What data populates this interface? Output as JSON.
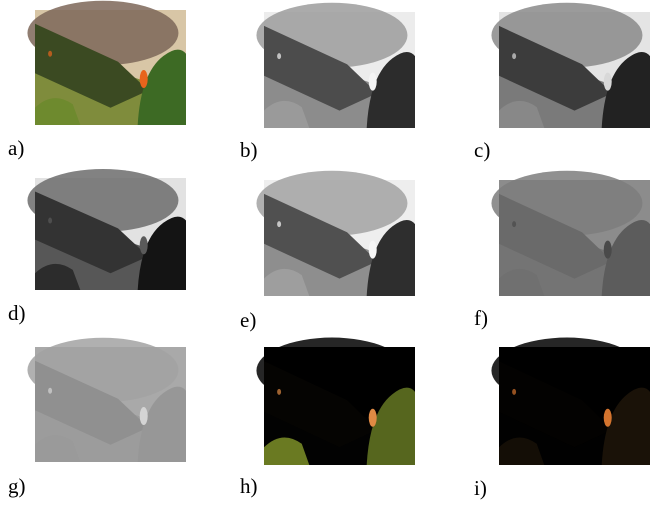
{
  "panels": [
    {
      "label": "a)"
    },
    {
      "label": "b)"
    },
    {
      "label": "c)"
    },
    {
      "label": "d)"
    },
    {
      "label": "e)"
    },
    {
      "label": "f)"
    },
    {
      "label": "g)"
    },
    {
      "label": "h)"
    },
    {
      "label": "i)"
    }
  ]
}
